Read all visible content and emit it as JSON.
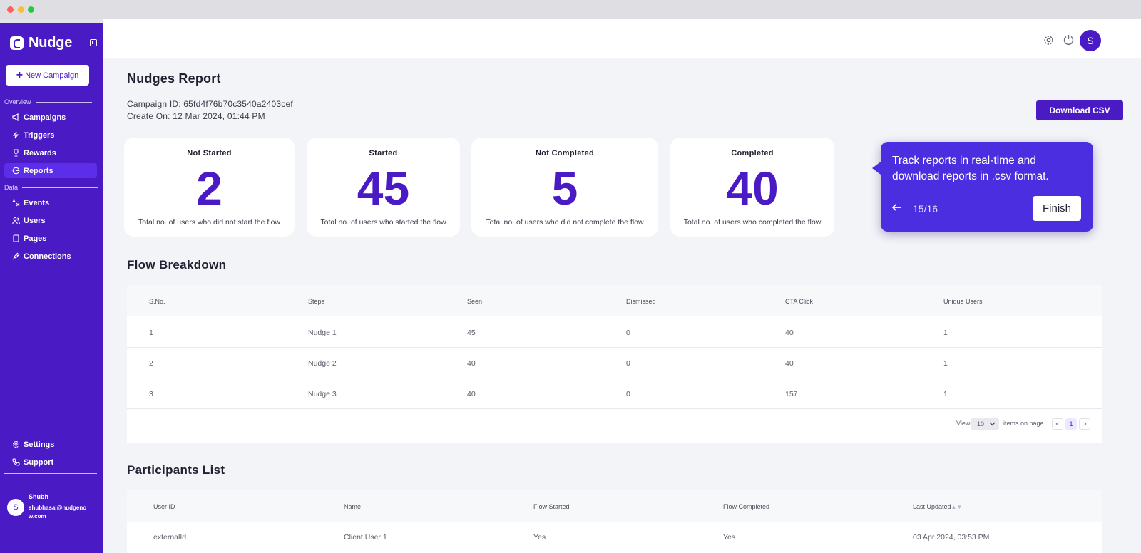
{
  "window": {
    "controls": [
      "close",
      "minimize",
      "maximize"
    ]
  },
  "sidebar": {
    "brand": "Nudge",
    "new_campaign_label": "New Campaign",
    "sections": {
      "overview": "Overview",
      "data": "Data"
    },
    "overview_items": [
      {
        "label": "Campaigns",
        "icon": "megaphone-icon",
        "active": false
      },
      {
        "label": "Triggers",
        "icon": "lightning-icon",
        "active": false
      },
      {
        "label": "Rewards",
        "icon": "trophy-icon",
        "active": false
      },
      {
        "label": "Reports",
        "icon": "pie-chart-icon",
        "active": true
      }
    ],
    "data_items": [
      {
        "label": "Events",
        "icon": "events-icon"
      },
      {
        "label": "Users",
        "icon": "users-icon"
      },
      {
        "label": "Pages",
        "icon": "page-icon"
      },
      {
        "label": "Connections",
        "icon": "plug-icon"
      }
    ],
    "bottom_items": [
      {
        "label": "Settings",
        "icon": "gear-icon"
      },
      {
        "label": "Support",
        "icon": "phone-icon"
      }
    ],
    "user": {
      "initial": "S",
      "name": "Shubh",
      "email": "shubhasal@nudgenow.com"
    }
  },
  "topbar": {
    "avatar_initial": "S"
  },
  "report": {
    "title": "Nudges Report",
    "campaign_id": "Campaign ID: 65fd4f76b70c3540a2403cef",
    "created_on": "Create On: 12 Mar 2024, 01:44 PM",
    "download_label": "Download CSV"
  },
  "stats": [
    {
      "title": "Not Started",
      "value": "2",
      "desc": "Total no. of users who did not start the flow"
    },
    {
      "title": "Started",
      "value": "45",
      "desc": "Total no. of users who started the flow"
    },
    {
      "title": "Not Completed",
      "value": "5",
      "desc": "Total no. of users who did not complete the flow"
    },
    {
      "title": "Completed",
      "value": "40",
      "desc": "Total no. of users who completed the flow"
    }
  ],
  "tooltip": {
    "text": "Track reports in real-time and download reports in .csv format.",
    "step": "15/16",
    "finish_label": "Finish"
  },
  "flow_breakdown": {
    "title": "Flow Breakdown",
    "columns": [
      "S.No.",
      "Steps",
      "Seen",
      "Dismissed",
      "CTA Click",
      "Unique Users"
    ],
    "rows": [
      [
        "1",
        "Nudge 1",
        "45",
        "0",
        "40",
        "1"
      ],
      [
        "2",
        "Nudge 2",
        "40",
        "0",
        "40",
        "1"
      ],
      [
        "3",
        "Nudge 3",
        "40",
        "0",
        "157",
        "1"
      ]
    ],
    "pager": {
      "view_label": "View",
      "page_size": "10",
      "suffix": "items on page",
      "prev": "<",
      "current": "1",
      "next": ">"
    }
  },
  "participants": {
    "title": "Participants List",
    "columns": [
      "User ID",
      "Name",
      "Flow Started",
      "Flow Completed",
      "Last Updated"
    ],
    "rows": [
      [
        "externalId",
        "Client User 1",
        "Yes",
        "Yes",
        "03 Apr 2024, 03:53 PM"
      ]
    ]
  }
}
